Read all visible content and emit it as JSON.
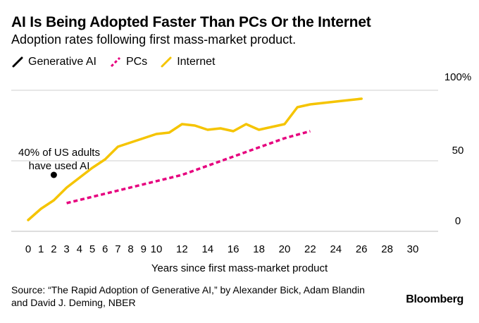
{
  "title": "AI Is Being Adopted Faster Than PCs Or the Internet",
  "subtitle": "Adoption rates following first mass-market product.",
  "legend": [
    {
      "name": "Generative AI",
      "color": "#000000",
      "icon": "slash-line-icon"
    },
    {
      "name": "PCs",
      "color": "#e6007e",
      "icon": "dashed-slash-line-icon"
    },
    {
      "name": "Internet",
      "color": "#f5c400",
      "icon": "slash-line-icon"
    }
  ],
  "annotation": {
    "line1": "40% of US adults",
    "line2": "have used AI"
  },
  "source": "Source: “The Rapid Adoption of Generative AI,” by Alexander Bick, Adam Blandin and David J. Deming, NBER",
  "brand": "Bloomberg",
  "chart_data": {
    "type": "line",
    "title": "AI Is Being Adopted Faster Than PCs Or the Internet",
    "subtitle": "Adoption rates following first mass-market product.",
    "xlabel": "Years since first mass-market product",
    "ylabel": "",
    "xlim": [
      0,
      31
    ],
    "ylim": [
      0,
      100
    ],
    "x_ticks": [
      "0",
      "1",
      "2",
      "3",
      "4",
      "5",
      "6",
      "7",
      "8",
      "9",
      "10",
      "12",
      "14",
      "16",
      "18",
      "20",
      "22",
      "24",
      "26",
      "28",
      "30"
    ],
    "y_ticks": [
      "0",
      "50",
      "100%"
    ],
    "grid": true,
    "legend_position": "top-left",
    "series": [
      {
        "name": "Generative AI",
        "color": "#000000",
        "style": "point",
        "x": [
          2
        ],
        "y": [
          40
        ]
      },
      {
        "name": "PCs",
        "color": "#e6007e",
        "style": "dashed",
        "x": [
          3,
          12,
          20,
          22
        ],
        "y": [
          20,
          40,
          66,
          71
        ]
      },
      {
        "name": "Internet",
        "color": "#f5c400",
        "style": "solid",
        "x": [
          0,
          1,
          2,
          3,
          4,
          5,
          6,
          7,
          8,
          9,
          10,
          11,
          12,
          13,
          14,
          15,
          16,
          17,
          18,
          19,
          20,
          21,
          22,
          23,
          24,
          25,
          26
        ],
        "y": [
          8,
          16,
          22,
          31,
          38,
          45,
          51,
          60,
          63,
          66,
          69,
          70,
          76,
          75,
          72,
          73,
          71,
          76,
          72,
          74,
          76,
          88,
          90,
          91,
          92,
          93,
          94
        ]
      }
    ]
  }
}
